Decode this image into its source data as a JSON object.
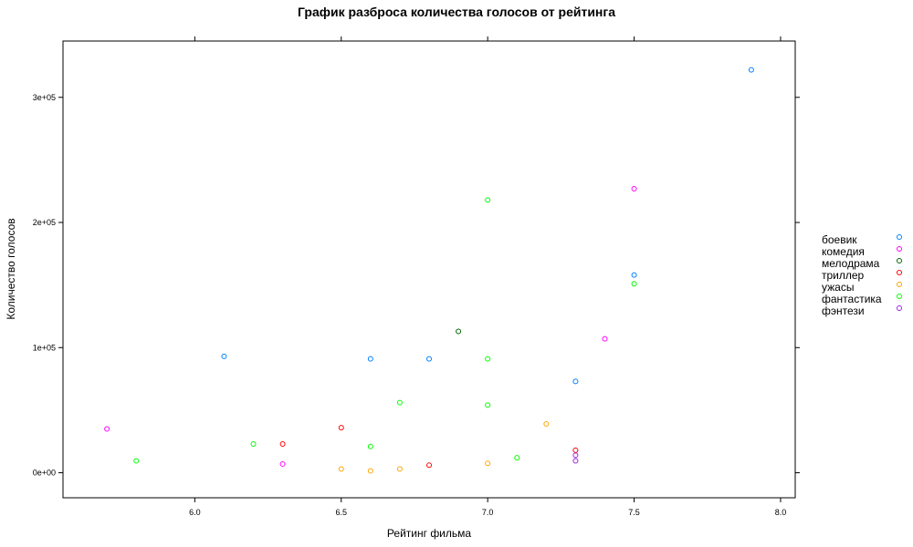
{
  "chart_data": {
    "type": "scatter",
    "title": "График разброса количества голосов от рейтинга",
    "xlabel": "Рейтинг фильма",
    "ylabel": "Количество голосов",
    "xlim": [
      5.55,
      8.05
    ],
    "ylim": [
      -20000,
      345000
    ],
    "x_ticks": [
      6.0,
      6.5,
      7.0,
      7.5,
      8.0
    ],
    "x_tick_labels": [
      "6.0",
      "6.5",
      "7.0",
      "7.5",
      "8.0"
    ],
    "y_ticks": [
      0,
      100000,
      200000,
      300000
    ],
    "y_tick_labels": [
      "0e+00",
      "1e+05",
      "2e+05",
      "3e+05"
    ],
    "grid": false,
    "legend_position": "right",
    "series": [
      {
        "name": "боевик",
        "color": "#0080ff",
        "points": [
          [
            6.1,
            93000
          ],
          [
            6.6,
            91000
          ],
          [
            6.8,
            91000
          ],
          [
            7.3,
            73000
          ],
          [
            7.5,
            158000
          ],
          [
            7.9,
            322000
          ]
        ]
      },
      {
        "name": "комедия",
        "color": "#ff00ff",
        "points": [
          [
            5.7,
            35000
          ],
          [
            6.3,
            7000
          ],
          [
            7.4,
            107000
          ],
          [
            7.5,
            227000
          ]
        ]
      },
      {
        "name": "мелодрама",
        "color": "#006400",
        "points": [
          [
            6.9,
            113000
          ]
        ]
      },
      {
        "name": "триллер",
        "color": "#ff0000",
        "points": [
          [
            6.3,
            23000
          ],
          [
            6.5,
            36000
          ],
          [
            6.8,
            6000
          ],
          [
            7.3,
            18000
          ]
        ]
      },
      {
        "name": "ужасы",
        "color": "#ffa500",
        "points": [
          [
            6.5,
            3000
          ],
          [
            6.6,
            1500
          ],
          [
            6.7,
            3000
          ],
          [
            7.0,
            7500
          ],
          [
            7.2,
            39000
          ]
        ]
      },
      {
        "name": "фантастика",
        "color": "#00ff00",
        "points": [
          [
            5.8,
            9500
          ],
          [
            6.2,
            23000
          ],
          [
            6.6,
            21000
          ],
          [
            6.7,
            56000
          ],
          [
            7.0,
            54000
          ],
          [
            7.0,
            91000
          ],
          [
            7.0,
            218000
          ],
          [
            7.1,
            12000
          ],
          [
            7.5,
            151000
          ]
        ]
      },
      {
        "name": "фэнтези",
        "color": "#a020f0",
        "points": [
          [
            7.3,
            9500
          ],
          [
            7.3,
            14000
          ]
        ]
      }
    ]
  }
}
